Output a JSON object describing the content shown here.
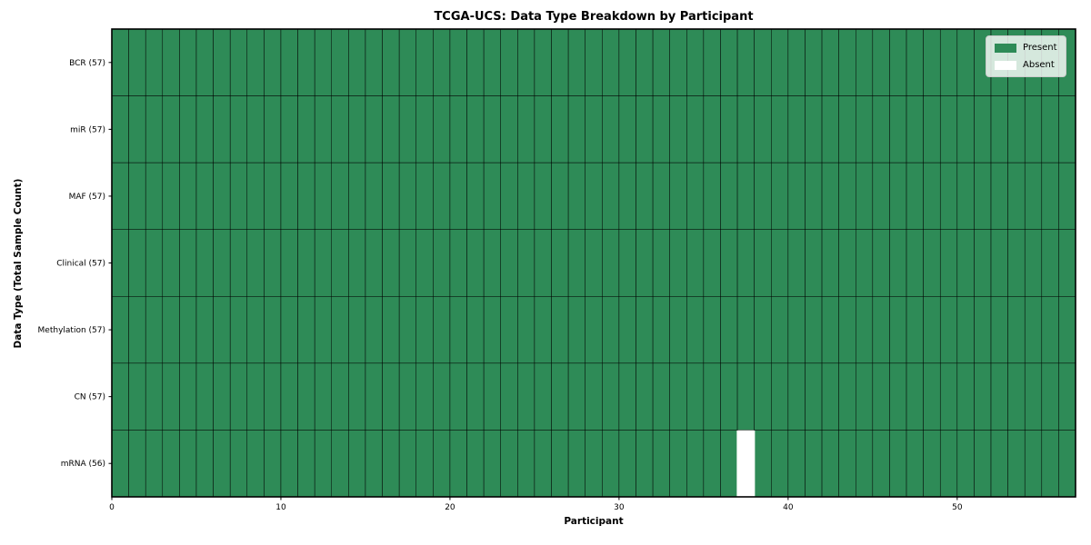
{
  "chart_data": {
    "type": "heatmap",
    "title": "TCGA-UCS: Data Type Breakdown by Participant",
    "xlabel": "Participant",
    "ylabel": "Data Type (Total Sample Count)",
    "n_participants": 57,
    "xlim": [
      0,
      57
    ],
    "x_ticks": [
      0,
      10,
      20,
      30,
      40,
      50
    ],
    "rows": [
      {
        "label": "BCR (57)",
        "name": "BCR",
        "count": 57,
        "absent_participants": []
      },
      {
        "label": "miR (57)",
        "name": "miR",
        "count": 57,
        "absent_participants": []
      },
      {
        "label": "MAF (57)",
        "name": "MAF",
        "count": 57,
        "absent_participants": []
      },
      {
        "label": "Clinical (57)",
        "name": "Clinical",
        "count": 57,
        "absent_participants": []
      },
      {
        "label": "Methylation (57)",
        "name": "Methylation",
        "count": 57,
        "absent_participants": []
      },
      {
        "label": "CN (57)",
        "name": "CN",
        "count": 57,
        "absent_participants": []
      },
      {
        "label": "mRNA (56)",
        "name": "mRNA",
        "count": 56,
        "absent_participants": [
          37
        ]
      }
    ],
    "legend": {
      "position": "upper right",
      "entries": [
        {
          "label": "Present",
          "color": "#2e8b57"
        },
        {
          "label": "Absent",
          "color": "#ffffff"
        }
      ]
    },
    "colors": {
      "present": "#2e8b57",
      "absent": "#ffffff",
      "edge": "#000000"
    }
  }
}
